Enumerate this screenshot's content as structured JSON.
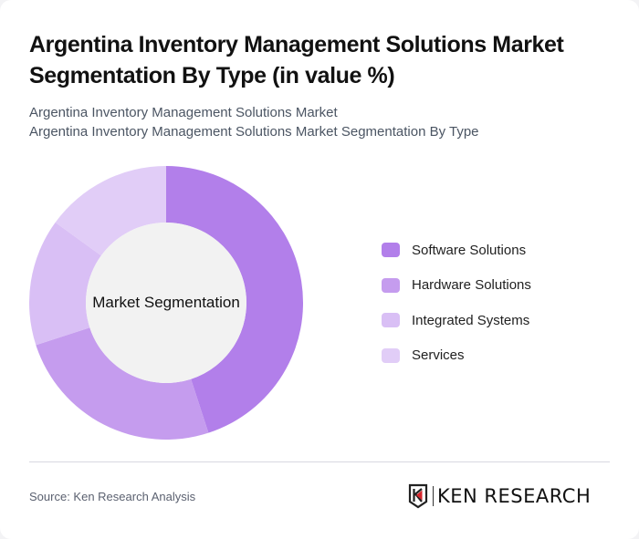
{
  "header": {
    "title": "Argentina Inventory Management Solutions Market Segmentation By Type (in value %)",
    "subtitle_lines": [
      "Argentina Inventory Management Solutions Market",
      "Argentina Inventory Management Solutions Market Segmentation By Type"
    ]
  },
  "chart": {
    "center_label": "Market Segmentation"
  },
  "legend": {
    "items": [
      {
        "label": "Software Solutions",
        "color": "#b27fea"
      },
      {
        "label": "Hardware Solutions",
        "color": "#c59cee"
      },
      {
        "label": "Integrated Systems",
        "color": "#d9bff5"
      },
      {
        "label": "Services",
        "color": "#e1cdf7"
      }
    ]
  },
  "footer": {
    "source": "Source: Ken Research Analysis",
    "logo_text": "KEN RESEARCH"
  },
  "chart_data": {
    "type": "pie",
    "variant": "donut",
    "title": "Argentina Inventory Management Solutions Market Segmentation By Type (in value %)",
    "center_label": "Market Segmentation",
    "categories": [
      "Software Solutions",
      "Hardware Solutions",
      "Integrated Systems",
      "Services"
    ],
    "values": [
      45,
      25,
      15,
      15
    ],
    "colors": [
      "#b27fea",
      "#c59cee",
      "#d9bff5",
      "#e1cdf7"
    ],
    "legend_position": "right",
    "start_angle": "top, clockwise"
  }
}
